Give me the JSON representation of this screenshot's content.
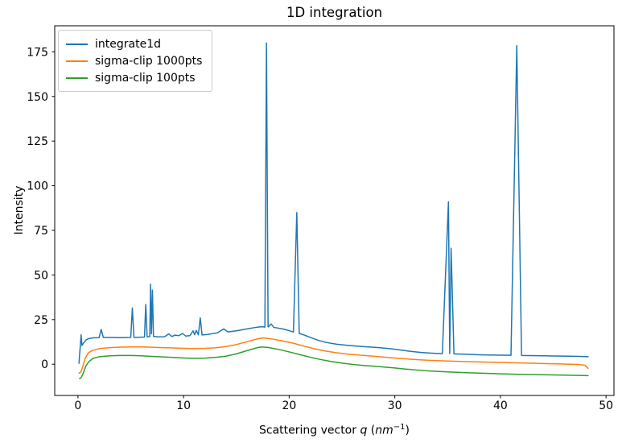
{
  "window": {
    "title": "1D integration"
  },
  "chart_data": {
    "type": "line",
    "title": "1D integration",
    "xlabel_text": "Scattering vector q (nm⁻¹)",
    "xlabel_parts": {
      "prefix": "Scattering vector ",
      "symbol": "q",
      "open": " (",
      "unit": "nm",
      "exponent": "−1",
      "close": ")"
    },
    "ylabel": "Intensity",
    "xlim": [
      -2.2,
      50.75
    ],
    "ylim": [
      -17.5,
      189.6
    ],
    "xticks": [
      0,
      10,
      20,
      30,
      40,
      50
    ],
    "yticks": [
      0,
      25,
      50,
      75,
      100,
      125,
      150,
      175
    ],
    "grid": false,
    "legend_position": "upper-left",
    "axis_color": "#000000",
    "series": [
      {
        "name": "integrate1d",
        "color": "#1f77b4",
        "points": [
          [
            0.1,
            0.5
          ],
          [
            0.15,
            5.0
          ],
          [
            0.22,
            10.0
          ],
          [
            0.3,
            16.5
          ],
          [
            0.38,
            10.5
          ],
          [
            0.55,
            12.0
          ],
          [
            0.75,
            13.5
          ],
          [
            1.0,
            14.3
          ],
          [
            1.5,
            14.8
          ],
          [
            2.0,
            14.9
          ],
          [
            2.2,
            19.5
          ],
          [
            2.4,
            15.0
          ],
          [
            3.0,
            15.0
          ],
          [
            4.0,
            14.9
          ],
          [
            5.0,
            15.0
          ],
          [
            5.15,
            31.5
          ],
          [
            5.3,
            15.0
          ],
          [
            6.3,
            15.2
          ],
          [
            6.42,
            33.5
          ],
          [
            6.55,
            15.3
          ],
          [
            6.8,
            15.5
          ],
          [
            6.88,
            44.8
          ],
          [
            6.96,
            17.0
          ],
          [
            7.05,
            41.5
          ],
          [
            7.15,
            15.6
          ],
          [
            7.6,
            15.3
          ],
          [
            8.2,
            15.4
          ],
          [
            8.6,
            17.0
          ],
          [
            8.9,
            15.5
          ],
          [
            9.2,
            16.3
          ],
          [
            9.55,
            16.0
          ],
          [
            9.9,
            17.2
          ],
          [
            10.2,
            15.8
          ],
          [
            10.6,
            16.0
          ],
          [
            10.9,
            18.7
          ],
          [
            11.05,
            16.5
          ],
          [
            11.2,
            19.0
          ],
          [
            11.4,
            16.5
          ],
          [
            11.58,
            26.0
          ],
          [
            11.75,
            16.4
          ],
          [
            12.3,
            16.7
          ],
          [
            12.7,
            17.1
          ],
          [
            13.2,
            17.6
          ],
          [
            13.8,
            19.8
          ],
          [
            14.2,
            18.1
          ],
          [
            15.0,
            18.7
          ],
          [
            16.0,
            19.8
          ],
          [
            16.8,
            20.6
          ],
          [
            17.4,
            21.0
          ],
          [
            17.7,
            20.8
          ],
          [
            17.85,
            180.0
          ],
          [
            18.0,
            20.9
          ],
          [
            18.3,
            22.5
          ],
          [
            18.55,
            20.6
          ],
          [
            19.0,
            20.2
          ],
          [
            19.5,
            19.6
          ],
          [
            20.0,
            18.8
          ],
          [
            20.4,
            18.0
          ],
          [
            20.72,
            85.0
          ],
          [
            20.95,
            17.3
          ],
          [
            21.5,
            16.2
          ],
          [
            22.0,
            15.0
          ],
          [
            22.7,
            13.5
          ],
          [
            23.5,
            12.2
          ],
          [
            24.5,
            11.2
          ],
          [
            25.5,
            10.6
          ],
          [
            26.5,
            10.1
          ],
          [
            27.5,
            9.7
          ],
          [
            28.5,
            9.3
          ],
          [
            29.5,
            8.7
          ],
          [
            30.5,
            8.0
          ],
          [
            31.5,
            7.2
          ],
          [
            32.5,
            6.6
          ],
          [
            33.5,
            6.2
          ],
          [
            34.5,
            5.9
          ],
          [
            35.08,
            91.0
          ],
          [
            35.2,
            5.9
          ],
          [
            35.33,
            65.0
          ],
          [
            35.6,
            5.8
          ],
          [
            36.5,
            5.6
          ],
          [
            38.0,
            5.3
          ],
          [
            39.5,
            5.1
          ],
          [
            41.0,
            5.0
          ],
          [
            41.55,
            178.5
          ],
          [
            42.0,
            4.9
          ],
          [
            43.5,
            4.8
          ],
          [
            45.0,
            4.6
          ],
          [
            46.5,
            4.5
          ],
          [
            47.5,
            4.4
          ],
          [
            48.3,
            4.2
          ]
        ]
      },
      {
        "name": "sigma-clip 1000pts",
        "color": "#ff7f0e",
        "points": [
          [
            0.1,
            -5.0
          ],
          [
            0.25,
            -4.5
          ],
          [
            0.45,
            -1.5
          ],
          [
            0.7,
            3.5
          ],
          [
            1.0,
            6.5
          ],
          [
            1.4,
            7.8
          ],
          [
            2.0,
            8.7
          ],
          [
            3.0,
            9.3
          ],
          [
            4.0,
            9.6
          ],
          [
            5.0,
            9.7
          ],
          [
            6.0,
            9.7
          ],
          [
            7.0,
            9.5
          ],
          [
            8.0,
            9.3
          ],
          [
            9.0,
            9.1
          ],
          [
            10.0,
            8.9
          ],
          [
            11.0,
            8.8
          ],
          [
            12.0,
            8.9
          ],
          [
            13.0,
            9.2
          ],
          [
            14.0,
            9.9
          ],
          [
            15.0,
            11.0
          ],
          [
            16.0,
            12.6
          ],
          [
            16.8,
            13.9
          ],
          [
            17.4,
            14.7
          ],
          [
            17.8,
            14.6
          ],
          [
            18.5,
            14.0
          ],
          [
            19.5,
            12.9
          ],
          [
            20.5,
            11.6
          ],
          [
            21.5,
            10.0
          ],
          [
            22.5,
            8.5
          ],
          [
            23.5,
            7.3
          ],
          [
            24.5,
            6.4
          ],
          [
            25.5,
            5.7
          ],
          [
            26.5,
            5.2
          ],
          [
            27.5,
            4.7
          ],
          [
            28.5,
            4.2
          ],
          [
            29.5,
            3.7
          ],
          [
            30.5,
            3.2
          ],
          [
            31.5,
            2.8
          ],
          [
            32.5,
            2.4
          ],
          [
            33.5,
            2.1
          ],
          [
            35.0,
            1.8
          ],
          [
            36.5,
            1.5
          ],
          [
            38.0,
            1.3
          ],
          [
            40.0,
            1.0
          ],
          [
            42.0,
            0.7
          ],
          [
            44.0,
            0.4
          ],
          [
            46.0,
            0.1
          ],
          [
            47.3,
            -0.1
          ],
          [
            48.0,
            -0.6
          ],
          [
            48.3,
            -2.3
          ]
        ]
      },
      {
        "name": "sigma-clip 100pts",
        "color": "#2ca02c",
        "points": [
          [
            0.15,
            -8.0
          ],
          [
            0.3,
            -7.6
          ],
          [
            0.5,
            -5.0
          ],
          [
            0.75,
            -1.0
          ],
          [
            1.0,
            1.2
          ],
          [
            1.4,
            3.2
          ],
          [
            2.0,
            4.2
          ],
          [
            3.0,
            4.7
          ],
          [
            4.0,
            4.9
          ],
          [
            5.0,
            4.9
          ],
          [
            6.0,
            4.7
          ],
          [
            7.0,
            4.4
          ],
          [
            8.0,
            4.1
          ],
          [
            9.0,
            3.8
          ],
          [
            10.0,
            3.5
          ],
          [
            11.0,
            3.3
          ],
          [
            12.0,
            3.4
          ],
          [
            13.0,
            3.8
          ],
          [
            14.0,
            4.5
          ],
          [
            15.0,
            5.8
          ],
          [
            16.0,
            7.6
          ],
          [
            17.0,
            9.3
          ],
          [
            17.4,
            9.7
          ],
          [
            18.0,
            9.4
          ],
          [
            19.0,
            8.3
          ],
          [
            20.0,
            6.9
          ],
          [
            21.0,
            5.4
          ],
          [
            22.0,
            3.9
          ],
          [
            23.0,
            2.6
          ],
          [
            24.0,
            1.5
          ],
          [
            25.0,
            0.6
          ],
          [
            26.0,
            -0.1
          ],
          [
            27.0,
            -0.7
          ],
          [
            28.0,
            -1.1
          ],
          [
            29.0,
            -1.6
          ],
          [
            30.0,
            -2.1
          ],
          [
            31.0,
            -2.7
          ],
          [
            32.0,
            -3.2
          ],
          [
            33.0,
            -3.7
          ],
          [
            34.0,
            -4.0
          ],
          [
            35.0,
            -4.3
          ],
          [
            36.5,
            -4.7
          ],
          [
            38.0,
            -5.0
          ],
          [
            40.0,
            -5.4
          ],
          [
            42.0,
            -5.7
          ],
          [
            44.0,
            -5.9
          ],
          [
            46.0,
            -6.1
          ],
          [
            48.3,
            -6.4
          ]
        ]
      }
    ]
  }
}
